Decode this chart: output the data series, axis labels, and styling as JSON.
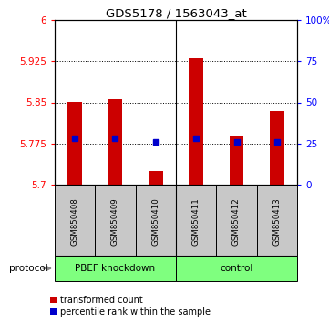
{
  "title": "GDS5178 / 1563043_at",
  "samples": [
    "GSM850408",
    "GSM850409",
    "GSM850410",
    "GSM850411",
    "GSM850412",
    "GSM850413"
  ],
  "bar_values": [
    5.85,
    5.855,
    5.725,
    5.93,
    5.79,
    5.835
  ],
  "bar_bottom": 5.7,
  "percentile_values": [
    5.785,
    5.785,
    5.778,
    5.785,
    5.778,
    5.778
  ],
  "ylim_left": [
    5.7,
    6.0
  ],
  "ylim_right": [
    0,
    100
  ],
  "yticks_left": [
    5.7,
    5.775,
    5.85,
    5.925,
    6.0
  ],
  "yticks_right": [
    0,
    25,
    50,
    75,
    100
  ],
  "ytick_labels_left": [
    "5.7",
    "5.775",
    "5.85",
    "5.925",
    "6"
  ],
  "ytick_labels_right": [
    "0",
    "25",
    "50",
    "75",
    "100%"
  ],
  "hlines": [
    5.775,
    5.85,
    5.925
  ],
  "group1_label": "PBEF knockdown",
  "group2_label": "control",
  "protocol_label": "protocol",
  "bar_color": "#CC0000",
  "percentile_color": "#0000CC",
  "group_bg": "#7FFF7F",
  "sample_bg": "#C8C8C8",
  "legend_red_label": "transformed count",
  "legend_blue_label": "percentile rank within the sample",
  "bar_width": 0.35
}
